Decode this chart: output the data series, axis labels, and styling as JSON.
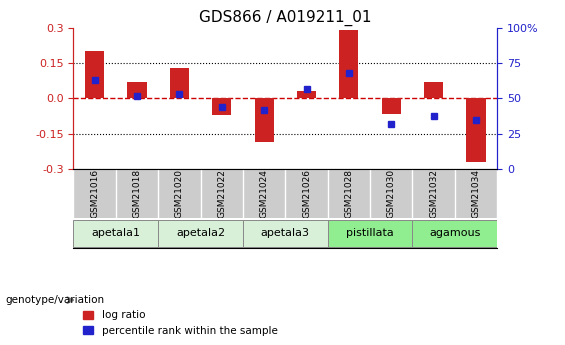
{
  "title": "GDS866 / A019211_01",
  "samples": [
    "GSM21016",
    "GSM21018",
    "GSM21020",
    "GSM21022",
    "GSM21024",
    "GSM21026",
    "GSM21028",
    "GSM21030",
    "GSM21032",
    "GSM21034"
  ],
  "log_ratio": [
    0.2,
    0.07,
    0.13,
    -0.07,
    -0.185,
    0.03,
    0.29,
    -0.065,
    0.07,
    -0.27
  ],
  "percentile_rank": [
    0.63,
    0.52,
    0.53,
    0.44,
    0.42,
    0.57,
    0.68,
    0.32,
    0.38,
    0.35
  ],
  "groups": [
    {
      "label": "apetala1",
      "samples": [
        "GSM21016",
        "GSM21018"
      ],
      "color": "#d8f0d8"
    },
    {
      "label": "apetala2",
      "samples": [
        "GSM21020",
        "GSM21022"
      ],
      "color": "#d8f0d8"
    },
    {
      "label": "apetala3",
      "samples": [
        "GSM21024",
        "GSM21026"
      ],
      "color": "#d8f0d8"
    },
    {
      "label": "pistillata",
      "samples": [
        "GSM21028",
        "GSM21030"
      ],
      "color": "#90ee90"
    },
    {
      "label": "agamous",
      "samples": [
        "GSM21032",
        "GSM21034"
      ],
      "color": "#90ee90"
    }
  ],
  "ylim_left": [
    -0.3,
    0.3
  ],
  "ylim_right": [
    0,
    100
  ],
  "yticks_left": [
    -0.3,
    -0.15,
    0.0,
    0.15,
    0.3
  ],
  "yticks_right": [
    0,
    25,
    50,
    75,
    100
  ],
  "bar_color_red": "#cc2222",
  "bar_color_blue": "#2222cc",
  "hline_color": "#cc0000",
  "grid_color": "#000000",
  "bg_color": "#ffffff",
  "sample_bg": "#cccccc",
  "legend_label_red": "log ratio",
  "legend_label_blue": "percentile rank within the sample",
  "genotype_label": "genotype/variation"
}
